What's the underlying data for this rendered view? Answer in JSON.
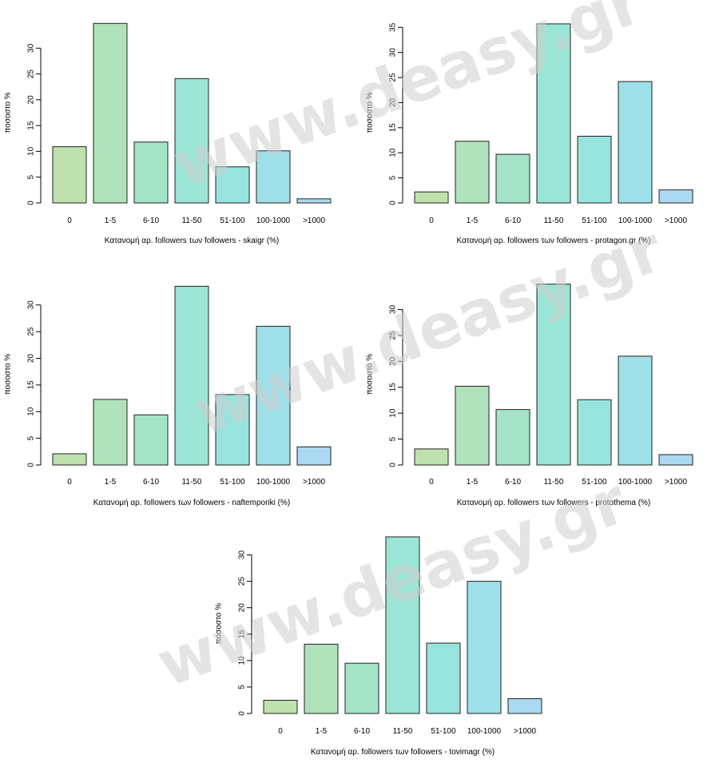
{
  "watermark": "www.deasy.gr",
  "bar_colors": [
    "#bfe1ae",
    "#afe2ba",
    "#a3e4c8",
    "#9ae5d5",
    "#97e3de",
    "#9ee0e7",
    "#abd9f1"
  ],
  "chart_data": [
    {
      "type": "bar",
      "categories": [
        "0",
        "1-5",
        "6-10",
        "11-50",
        "51-100",
        "100-1000",
        ">1000"
      ],
      "values": [
        10.9,
        34.8,
        11.8,
        24.1,
        7.0,
        10.1,
        0.8
      ],
      "xlabel": "Κατανομή αρ. followers των followers  - skaigr (%)",
      "ylabel": "ποσοστο %",
      "ylim": [
        0,
        35
      ],
      "yticks": [
        0,
        5,
        10,
        15,
        20,
        25,
        30
      ]
    },
    {
      "type": "bar",
      "categories": [
        "0",
        "1-5",
        "6-10",
        "11-50",
        "51-100",
        "100-1000",
        ">1000"
      ],
      "values": [
        2.2,
        12.3,
        9.7,
        35.7,
        13.3,
        24.2,
        2.6
      ],
      "xlabel": "Κατανομή αρ. followers των followers - protagon.gr (%)",
      "ylabel": "ποσοστο %",
      "ylim": [
        0,
        36
      ],
      "yticks": [
        0,
        5,
        10,
        15,
        20,
        25,
        30,
        35
      ]
    },
    {
      "type": "bar",
      "categories": [
        "0",
        "1-5",
        "6-10",
        "11-50",
        "51-100",
        "100-1000",
        ">1000"
      ],
      "values": [
        2.1,
        12.3,
        9.4,
        33.5,
        13.2,
        26.0,
        3.4
      ],
      "xlabel": "Κατανομή αρ. followers των followers  - naftemporiki (%)",
      "ylabel": "ποσοστο %",
      "ylim": [
        0,
        34
      ],
      "yticks": [
        0,
        5,
        10,
        15,
        20,
        25,
        30
      ]
    },
    {
      "type": "bar",
      "categories": [
        "0",
        "1-5",
        "6-10",
        "11-50",
        "51-100",
        "100-1000",
        ">1000"
      ],
      "values": [
        3.1,
        15.2,
        10.7,
        34.9,
        12.6,
        21.0,
        2.0
      ],
      "xlabel": "Κατανομή αρ. followers των followers  - protothema (%)",
      "ylabel": "ποσοστο %",
      "ylim": [
        0,
        35
      ],
      "yticks": [
        0,
        5,
        10,
        15,
        20,
        25,
        30
      ]
    },
    {
      "type": "bar",
      "categories": [
        "0",
        "1-5",
        "6-10",
        "11-50",
        "51-100",
        "100-1000",
        ">1000"
      ],
      "values": [
        2.5,
        13.1,
        9.5,
        33.4,
        13.3,
        25.0,
        2.8
      ],
      "xlabel": "Κατανομή αρ. followers των followers  - tovimagr (%)",
      "ylabel": "ποσοστο %",
      "ylim": [
        0,
        34
      ],
      "yticks": [
        0,
        5,
        10,
        15,
        20,
        25,
        30
      ]
    }
  ]
}
